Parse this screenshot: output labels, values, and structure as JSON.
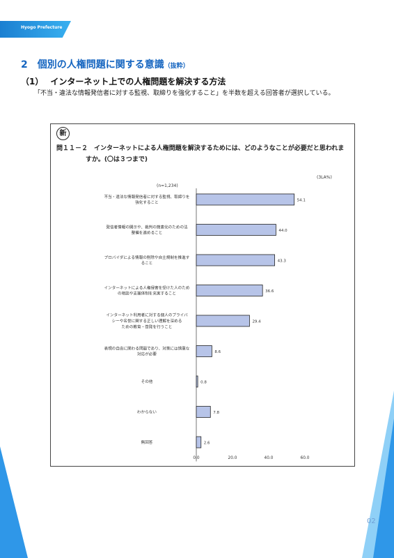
{
  "header": {
    "label": "Hyogo Prefecture"
  },
  "section": {
    "number": "2",
    "title": "個別の人権問題に関する意識",
    "note": "（抜粋）"
  },
  "subsection": {
    "number": "（1）",
    "title": "インターネット上での人権問題を解決する方法"
  },
  "description": "「不当・違法な情報発信者に対する監視、取締りを強化すること」を半数を超える回答者が選択している。",
  "chart_box": {
    "new_mark": "新",
    "question_line1": "問１１－２　インターネットによる人権問題を解決するためには、どのようなことが必要だと思われま",
    "question_line2": "すか。(〇は３つまで)"
  },
  "chart_data": {
    "type": "bar",
    "orientation": "horizontal",
    "n_label": "(n=1,234)",
    "unit_label": "(3LA%)",
    "categories": [
      [
        "不当・違法な情報発信者に対する監視、取締りを",
        "強化すること"
      ],
      [
        "発信者情報の開示や、裁判の簡素化のための法",
        "整備を進めること"
      ],
      [
        "プロバイダによる情報の削除や自主規制を推進す",
        "ること"
      ],
      [
        "インターネットによる人権侵害を受けた人のため",
        "の相談や支援体制を充実すること"
      ],
      [
        "インターネット利用者に対する個人のプライバ",
        "シーや名誉に関する正しい理解を深める",
        "ための教育・啓発を行うこと"
      ],
      [
        "表現の自由に関わる問題であり、対策には慎重な",
        "対応が必要"
      ],
      [
        "その他"
      ],
      [
        "わからない"
      ],
      [
        "無回答"
      ]
    ],
    "values": [
      54.1,
      44.0,
      43.3,
      36.6,
      29.4,
      8.6,
      0.8,
      7.8,
      2.6
    ],
    "value_labels": [
      "54.1",
      "44.0",
      "43.3",
      "36.6",
      "29.4",
      "8.6",
      "0.8",
      "7.8",
      "2.6"
    ],
    "xlim": [
      0,
      60
    ],
    "x_ticks": [
      "0.0",
      "20.0",
      "40.0",
      "60.0"
    ],
    "bar_color": "#b7c4e8",
    "bar_border": "#222222",
    "grid": false
  },
  "footer": {
    "page_number": "02"
  },
  "colors": {
    "accent": "#1565c0",
    "deco_blue": "#2f97e8",
    "deco_light": "#8fd0f7"
  }
}
